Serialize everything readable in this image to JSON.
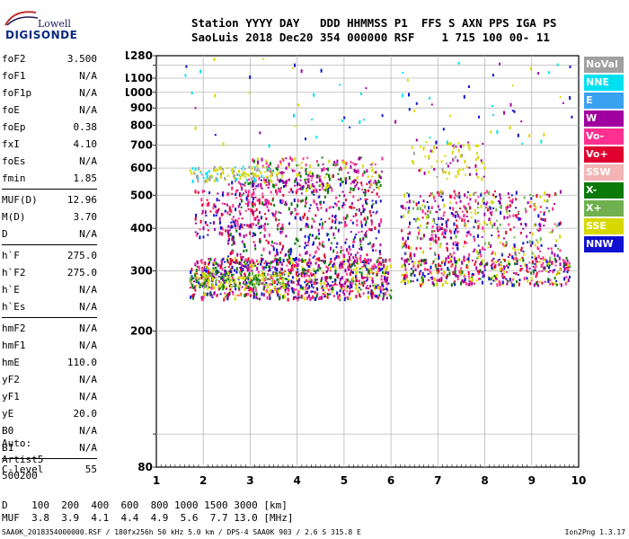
{
  "logo": {
    "top": "Lowell",
    "bottom": "DIGISONDE"
  },
  "header": {
    "line1": "Station YYYY DAY   DDD HHMMSS P1  FFS S AXN PPS IGA PS",
    "line2": "SaoLuis 2018 Dec20 354 000000 RSF    1 715 100 00- 11"
  },
  "params": [
    [
      {
        "name": "foF2",
        "value": "3.500"
      },
      {
        "name": "foF1",
        "value": "N/A"
      },
      {
        "name": "foF1p",
        "value": "N/A"
      },
      {
        "name": "foE",
        "value": "N/A"
      },
      {
        "name": "foEp",
        "value": "0.38"
      },
      {
        "name": "fxI",
        "value": "4.10"
      },
      {
        "name": "foEs",
        "value": "N/A"
      },
      {
        "name": "fmin",
        "value": "1.85"
      }
    ],
    [
      {
        "name": "MUF(D)",
        "value": "12.96"
      },
      {
        "name": "M(D)",
        "value": "3.70"
      },
      {
        "name": "D",
        "value": "N/A"
      }
    ],
    [
      {
        "name": "h`F",
        "value": "275.0"
      },
      {
        "name": "h`F2",
        "value": "275.0"
      },
      {
        "name": "h`E",
        "value": "N/A"
      },
      {
        "name": "h`Es",
        "value": "N/A"
      }
    ],
    [
      {
        "name": "hmF2",
        "value": "N/A"
      },
      {
        "name": "hmF1",
        "value": "N/A"
      },
      {
        "name": "hmE",
        "value": "110.0"
      },
      {
        "name": "yF2",
        "value": "N/A"
      },
      {
        "name": "yF1",
        "value": "N/A"
      },
      {
        "name": "yE",
        "value": "20.0"
      },
      {
        "name": "B0",
        "value": "N/A"
      },
      {
        "name": "B1",
        "value": "N/A"
      }
    ],
    [
      {
        "name": "C-level",
        "value": "55"
      }
    ]
  ],
  "footnote": {
    "line1": "Auto:",
    "line2": "Artist5",
    "line3": "500200"
  },
  "legend": [
    {
      "label": "NoVal",
      "color": "#a0a0a0"
    },
    {
      "label": "NNE",
      "color": "#00e0f0"
    },
    {
      "label": "E",
      "color": "#3aa0f0"
    },
    {
      "label": "W",
      "color": "#a000a0"
    },
    {
      "label": "Vo-",
      "color": "#ff3090"
    },
    {
      "label": "Vo+",
      "color": "#e00030"
    },
    {
      "label": "SSW",
      "color": "#f4b4b4"
    },
    {
      "label": "X-",
      "color": "#0a7a0a"
    },
    {
      "label": "X+",
      "color": "#70b050"
    },
    {
      "label": "SSE",
      "color": "#d8d800"
    },
    {
      "label": "NNW",
      "color": "#1010d0"
    }
  ],
  "dmuf": {
    "line1": "D    100  200  400  600  800 1000 1500 3000 [km]",
    "line2": "MUF  3.8  3.9  4.1  4.4  4.9  5.6  7.7 13.0 [MHz]"
  },
  "bottom_line": "SAA0K_2018354000000.RSF / 180fx256h 50 kHz 5.0 km / DPS-4 SAA0K 903 / 2.6 S 315.8 E",
  "version": "Ion2Png 1.3.17",
  "chart_data": {
    "type": "scatter",
    "x_axis": {
      "range": [
        1,
        10
      ],
      "ticks": [
        "1",
        "2",
        "3",
        "4",
        "5",
        "6",
        "7",
        "8",
        "9",
        "10"
      ]
    },
    "y_axis": {
      "range": [
        80,
        1280
      ],
      "scale": "log",
      "ticks": [
        [
          "80",
          "80"
        ],
        [
          "100",
          ""
        ],
        [
          "200",
          "200"
        ],
        [
          "300",
          "300"
        ],
        [
          "400",
          "400"
        ],
        [
          "500",
          "500"
        ],
        [
          "600",
          "600"
        ],
        [
          "700",
          "700"
        ],
        [
          "800",
          "800"
        ],
        [
          "900",
          "900"
        ],
        [
          "1000",
          "1000"
        ],
        [
          "1100",
          "1100"
        ],
        [
          "1200",
          ""
        ],
        [
          "1280",
          "1280"
        ]
      ]
    },
    "grid": true,
    "legend_position": "right",
    "clusters": [
      {
        "x": [
          1.7,
          6.0
        ],
        "y": [
          250,
          330
        ],
        "colors": [
          "#ff3090",
          "#e00030",
          "#a000a0",
          "#0a7a0a",
          "#d8d800",
          "#1010d0"
        ],
        "density": 0.55
      },
      {
        "x": [
          1.7,
          3.8
        ],
        "y": [
          270,
          300
        ],
        "colors": [
          "#d8d800",
          "#0a7a0a",
          "#70b050"
        ],
        "density": 0.5
      },
      {
        "x": [
          2.5,
          5.8
        ],
        "y": [
          320,
          560
        ],
        "colors": [
          "#a000a0",
          "#ff3090",
          "#e00030",
          "#1010d0",
          "#0a7a0a"
        ],
        "density": 0.22
      },
      {
        "x": [
          3.0,
          5.8
        ],
        "y": [
          520,
          650
        ],
        "colors": [
          "#d8d800",
          "#a000a0",
          "#ff3090",
          "#0a7a0a"
        ],
        "density": 0.25
      },
      {
        "x": [
          1.7,
          3.6
        ],
        "y": [
          555,
          610
        ],
        "colors": [
          "#d8d800",
          "#d8d800",
          "#00e0f0",
          "#a0a0a0"
        ],
        "density": 0.45
      },
      {
        "x": [
          6.2,
          9.8
        ],
        "y": [
          275,
          330
        ],
        "colors": [
          "#ff3090",
          "#e00030",
          "#a000a0",
          "#0a7a0a",
          "#d8d800",
          "#1010d0"
        ],
        "density": 0.45
      },
      {
        "x": [
          6.2,
          9.6
        ],
        "y": [
          330,
          520
        ],
        "colors": [
          "#a000a0",
          "#ff3090",
          "#e00030",
          "#d8d800",
          "#70b050",
          "#1010d0"
        ],
        "density": 0.22
      },
      {
        "x": [
          6.4,
          8.0
        ],
        "y": [
          560,
          720
        ],
        "colors": [
          "#d8d800",
          "#d8d800",
          "#a000a0",
          "#a0a0a0"
        ],
        "density": 0.14
      },
      {
        "x": [
          1.8,
          3.2
        ],
        "y": [
          380,
          520
        ],
        "colors": [
          "#a000a0",
          "#ff3090",
          "#1010d0",
          "#e00030"
        ],
        "density": 0.2
      },
      {
        "x": [
          1.6,
          9.9
        ],
        "y": [
          700,
          1280
        ],
        "colors": [
          "#d8d800",
          "#a000a0",
          "#1010d0",
          "#00e0f0"
        ],
        "density": 0.012
      }
    ]
  }
}
